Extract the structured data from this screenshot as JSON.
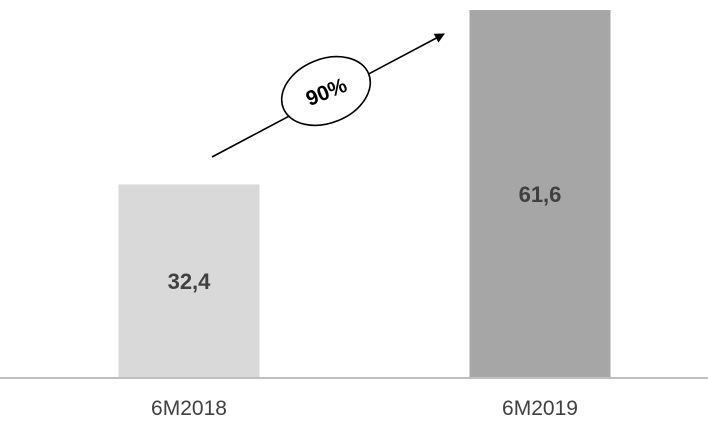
{
  "chart_data": {
    "type": "bar",
    "categories": [
      "6M2018",
      "6M2019"
    ],
    "values": [
      32.4,
      61.6
    ],
    "data_labels": [
      "32,4",
      "61,6"
    ],
    "title": "",
    "xlabel": "",
    "ylabel": "",
    "ylim": [
      0,
      61.6
    ],
    "grid": false,
    "legend": "none",
    "bar_colors": [
      "#d9d9d9",
      "#a6a6a6"
    ],
    "axis_color": "#bfbfbf",
    "label_color": "#404040",
    "annotation": {
      "text": "90%",
      "shape": "ellipse",
      "arrow": "from first bar to second bar"
    }
  }
}
